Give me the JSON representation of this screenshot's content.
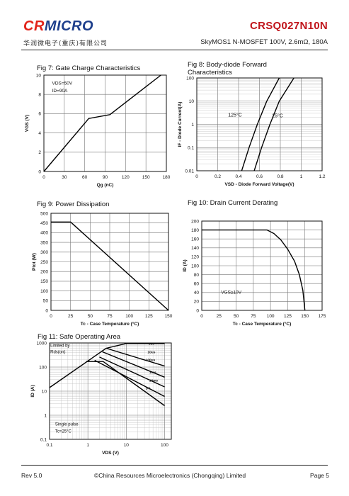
{
  "header": {
    "logo_cr": "CR",
    "logo_micro": "MICRO",
    "company_cn": "华润微电子(重庆)有限公司",
    "part_number": "CRSQ027N10N",
    "subtitle": "SkyMOS1 N-MOSFET 100V, 2.6mΩ, 180A",
    "brand_color": "#1e3f8c",
    "accent_color": "#c0151b"
  },
  "footer": {
    "rev": "Rev 5.0",
    "copyright": "©China Resources Microelectronics (Chongqing) Limited",
    "page": "Page 5"
  },
  "chart_data": [
    {
      "id": "fig7",
      "type": "line",
      "title": "Fig 7: Gate Charge Characteristics",
      "xlabel": "Qg (nC)",
      "ylabel": "VGS (V)",
      "xlim": [
        0,
        180
      ],
      "ylim": [
        0,
        10
      ],
      "xticks": [
        0,
        30,
        60,
        90,
        120,
        150,
        180
      ],
      "yticks": [
        0,
        2,
        4,
        6,
        8,
        10
      ],
      "grid": true,
      "annotations": [
        "VDS=50V",
        "ID=90A"
      ],
      "series": [
        {
          "x": [
            0,
            66,
            97,
            172
          ],
          "y": [
            0,
            5.5,
            5.9,
            10
          ]
        }
      ]
    },
    {
      "id": "fig8",
      "type": "line",
      "title": "Fig 8: Body-diode Forward Characteristics",
      "xlabel": "VSD - Diode Forward Voltage(V)",
      "ylabel": "IF - Diode Current(A)",
      "xlim": [
        0,
        1.2
      ],
      "ylim": [
        0.01,
        100
      ],
      "yscale": "log",
      "xticks": [
        0,
        0.2,
        0.4,
        0.6,
        0.8,
        1,
        1.2
      ],
      "yticks": [
        0.01,
        0.1,
        1,
        10,
        100
      ],
      "grid": true,
      "series": [
        {
          "name": "125°C",
          "x": [
            0.43,
            0.5,
            0.58,
            0.67,
            0.79
          ],
          "y": [
            0.01,
            0.1,
            1,
            10,
            100
          ]
        },
        {
          "name": "25°C",
          "x": [
            0.55,
            0.62,
            0.7,
            0.79,
            0.93
          ],
          "y": [
            0.01,
            0.1,
            1,
            10,
            100
          ]
        }
      ]
    },
    {
      "id": "fig9",
      "type": "line",
      "title": "Fig 9: Power Dissipation",
      "xlabel": "Tc - Case Temperature (°C)",
      "ylabel": "Ptot (W)",
      "xlim": [
        0,
        150
      ],
      "ylim": [
        0,
        500
      ],
      "xticks": [
        0,
        25,
        50,
        75,
        100,
        125,
        150
      ],
      "yticks": [
        0,
        50,
        100,
        150,
        200,
        250,
        300,
        350,
        400,
        450,
        500
      ],
      "grid": true,
      "series": [
        {
          "x": [
            0,
            25,
            150
          ],
          "y": [
            455,
            455,
            0
          ]
        }
      ]
    },
    {
      "id": "fig10",
      "type": "line",
      "title": "Fig 10: Drain Current Derating",
      "xlabel": "Tc - Case Temperature (°C)",
      "ylabel": "ID (A)",
      "xlim": [
        0,
        175
      ],
      "ylim": [
        0,
        200
      ],
      "xticks": [
        0,
        25,
        50,
        75,
        100,
        125,
        150,
        175
      ],
      "yticks": [
        0,
        20,
        40,
        60,
        80,
        100,
        120,
        140,
        160,
        180,
        200
      ],
      "grid": true,
      "annotations": [
        "VGS≥10V"
      ],
      "series": [
        {
          "x": [
            0,
            95,
            105,
            115,
            125,
            135,
            142,
            147,
            150
          ],
          "y": [
            180,
            180,
            172,
            158,
            137,
            110,
            80,
            45,
            0
          ]
        }
      ]
    },
    {
      "id": "fig11",
      "type": "line",
      "title": "Fig 11: Safe Operating Area",
      "xlabel": "VDS (V)",
      "ylabel": "ID (A)",
      "xscale": "log",
      "yscale": "log",
      "xlim": [
        0.1,
        150
      ],
      "ylim": [
        0.1,
        1000
      ],
      "xticks": [
        0.1,
        1,
        10,
        100
      ],
      "yticks": [
        0.1,
        1,
        10,
        100,
        1000
      ],
      "grid": true,
      "annotations": [
        "Limited by Rds(on)",
        "Single pulse",
        "Tc=25°C"
      ],
      "series": [
        {
          "name": "Rds(on) limit",
          "x": [
            0.1,
            3
          ],
          "y": [
            14,
            600
          ]
        },
        {
          "name": "5us",
          "x": [
            3,
            10,
            100
          ],
          "y": [
            600,
            950,
            950
          ]
        },
        {
          "name": "10us",
          "x": [
            3,
            100
          ],
          "y": [
            600,
            110
          ]
        },
        {
          "name": "100us",
          "x": [
            2.4,
            100
          ],
          "y": [
            430,
            38
          ]
        },
        {
          "name": "1ms",
          "x": [
            2.0,
            100
          ],
          "y": [
            260,
            15
          ]
        },
        {
          "name": "10ms",
          "x": [
            1.5,
            100
          ],
          "y": [
            190,
            6
          ]
        },
        {
          "name": "DC",
          "x": [
            0.9,
            2.5,
            100
          ],
          "y": [
            170,
            170,
            2.5
          ]
        }
      ]
    }
  ]
}
